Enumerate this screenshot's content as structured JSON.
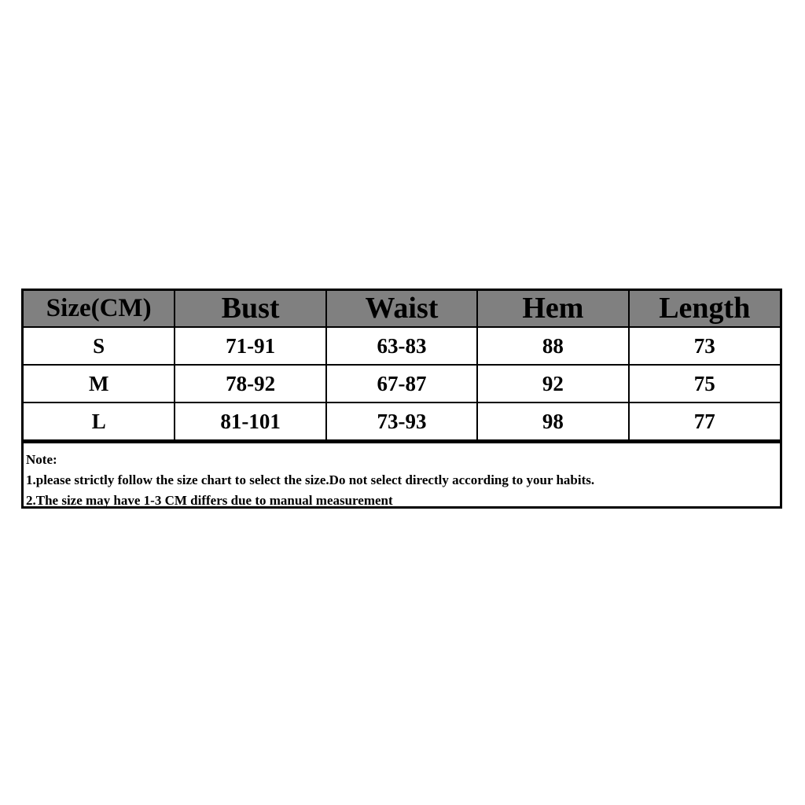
{
  "table": {
    "headers": [
      "Size(CM)",
      "Bust",
      "Waist",
      "Hem",
      "Length"
    ],
    "rows": [
      [
        "S",
        "71-91",
        "63-83",
        "88",
        "73"
      ],
      [
        "M",
        "78-92",
        "67-87",
        "92",
        "75"
      ],
      [
        "L",
        "81-101",
        "73-93",
        "98",
        "77"
      ]
    ],
    "header_bg": "#808080"
  },
  "note": {
    "title": "Note:",
    "lines": [
      "1.please strictly follow the size chart to select the size.Do not select directly according to your habits.",
      "2.The size may have 1-3 CM differs due to manual measurement"
    ]
  }
}
